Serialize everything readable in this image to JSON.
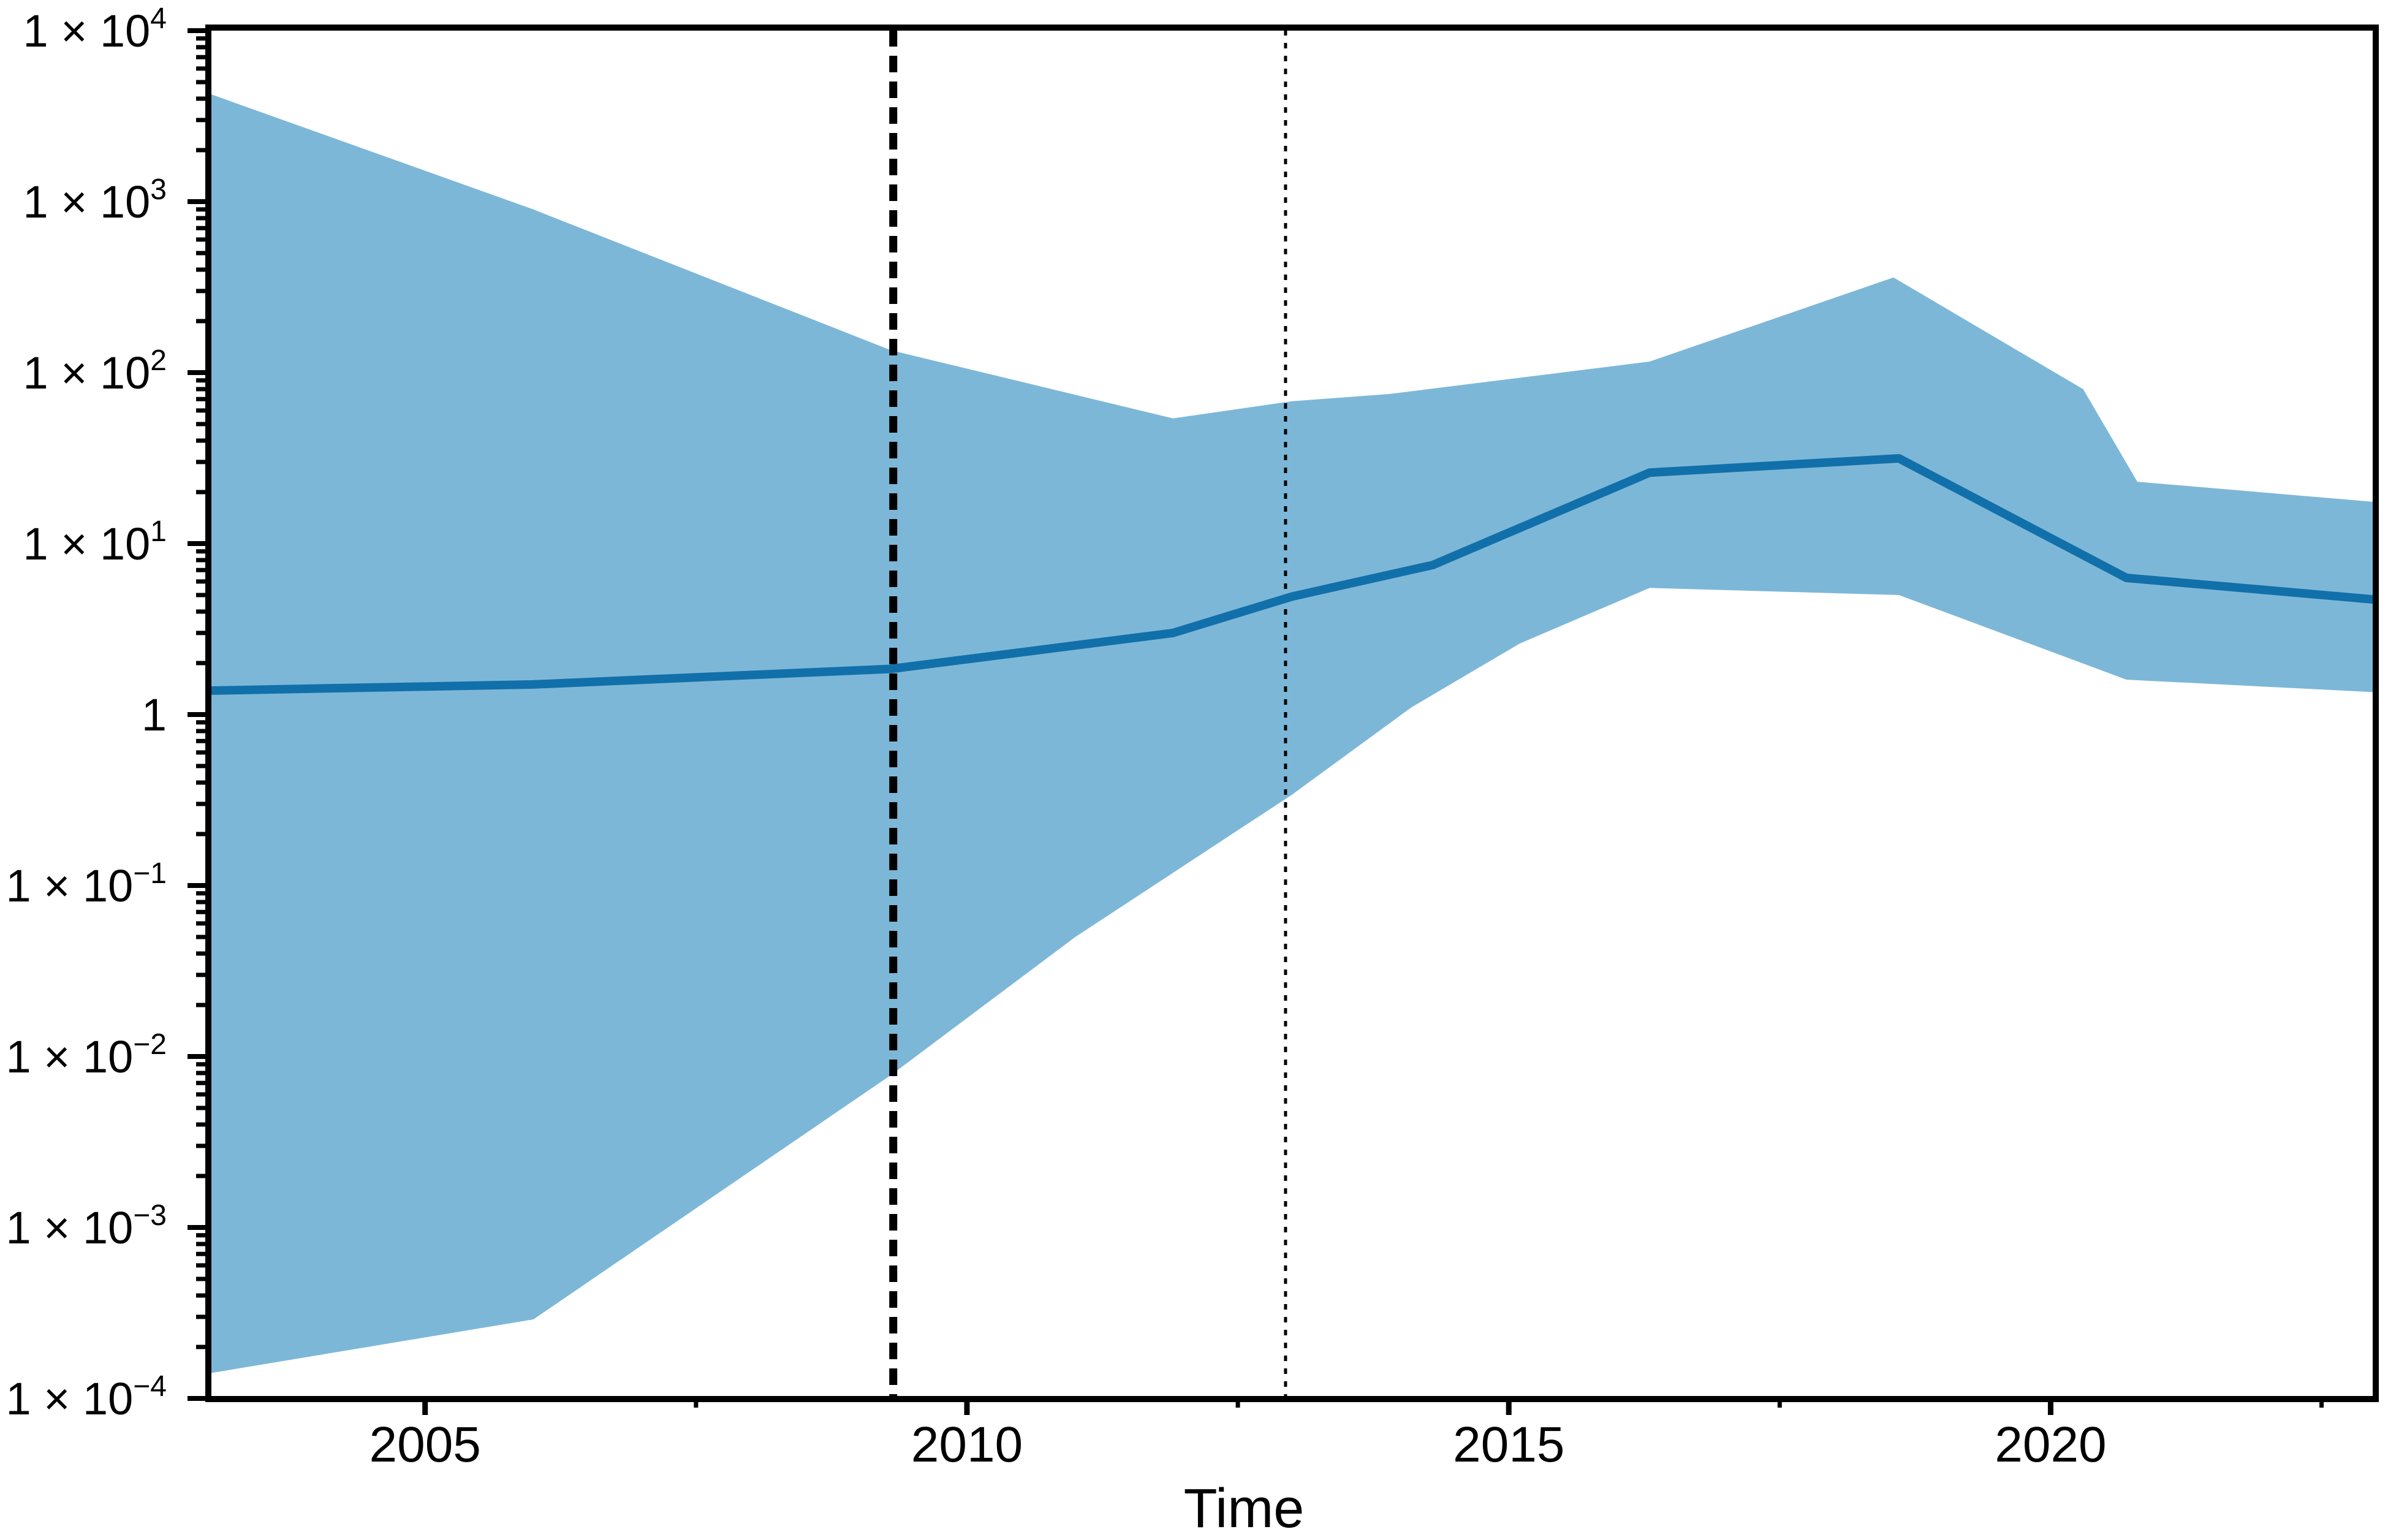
{
  "chart_data": {
    "type": "line",
    "title": "",
    "xlabel": "Time",
    "ylabel": "",
    "x_range": [
      2003,
      2023
    ],
    "y_scale": "log10",
    "y_range": [
      0.0001,
      10000
    ],
    "grid": "off",
    "legend": "none",
    "x_major_ticks": [
      2005,
      2010,
      2015,
      2020
    ],
    "x_major_tick_labels": [
      "2005",
      "2010",
      "2015",
      "2020"
    ],
    "x_minor_ticks": [
      2007.5,
      2012.5,
      2017.5,
      2022.5
    ],
    "y_major_tick_exponents": [
      4,
      3,
      2,
      1,
      0,
      -1,
      -2,
      -3,
      -4
    ],
    "y_tick_labels": [
      {
        "exp": 4,
        "base": "1 × 10",
        "sup": "4"
      },
      {
        "exp": 3,
        "base": "1 × 10",
        "sup": "3"
      },
      {
        "exp": 2,
        "base": "1 × 10",
        "sup": "2"
      },
      {
        "exp": 1,
        "base": "1 × 10",
        "sup": "1"
      },
      {
        "exp": 0,
        "base": "1",
        "sup": ""
      },
      {
        "exp": -1,
        "base": "1 × 10",
        "sup": "−1"
      },
      {
        "exp": -2,
        "base": "1 × 10",
        "sup": "−2"
      },
      {
        "exp": -3,
        "base": "1 × 10",
        "sup": "−3"
      },
      {
        "exp": -4,
        "base": "1 × 10",
        "sup": "−4"
      }
    ],
    "series": [
      {
        "name": "median",
        "kind": "line",
        "color": "#1170aa",
        "stroke_width": 14,
        "points": [
          [
            2003,
            1.38
          ],
          [
            2006,
            1.5
          ],
          [
            2009.3,
            1.85
          ],
          [
            2011.9,
            3.0
          ],
          [
            2013,
            4.9
          ],
          [
            2014.3,
            7.5
          ],
          [
            2016.3,
            26
          ],
          [
            2018.6,
            31.5
          ],
          [
            2020.7,
            6.3
          ],
          [
            2023,
            4.7
          ]
        ]
      },
      {
        "name": "credible-interval-upper",
        "kind": "band-edge",
        "points": [
          [
            2003,
            4300
          ],
          [
            2006,
            900
          ],
          [
            2009.3,
            135
          ],
          [
            2011.9,
            54
          ],
          [
            2013,
            68
          ],
          [
            2013.9,
            75
          ],
          [
            2016.3,
            116
          ],
          [
            2018.55,
            360
          ],
          [
            2020.3,
            80
          ],
          [
            2020.8,
            23
          ],
          [
            2023,
            17.5
          ]
        ]
      },
      {
        "name": "credible-interval-lower",
        "kind": "band-edge",
        "points": [
          [
            2003,
            0.00014
          ],
          [
            2006,
            0.00029
          ],
          [
            2009.3,
            0.0078
          ],
          [
            2011,
            0.05
          ],
          [
            2013,
            0.34
          ],
          [
            2014.1,
            1.1
          ],
          [
            2015.1,
            2.6
          ],
          [
            2016.3,
            5.5
          ],
          [
            2018.6,
            5.0
          ],
          [
            2020.7,
            1.6
          ],
          [
            2023,
            1.35
          ]
        ]
      }
    ],
    "band_color": "#7db7d8",
    "reference_lines": [
      {
        "name": "reference-line-thick-dashed",
        "x": 2009.32,
        "color": "#000000",
        "stroke_width": 13,
        "dash": "27 15"
      },
      {
        "name": "reference-line-thin-dotted",
        "x": 2012.94,
        "color": "#000000",
        "stroke_width": 5,
        "dash": "9 12"
      }
    ],
    "axis_color": "#000000",
    "background_color": "#ffffff"
  }
}
